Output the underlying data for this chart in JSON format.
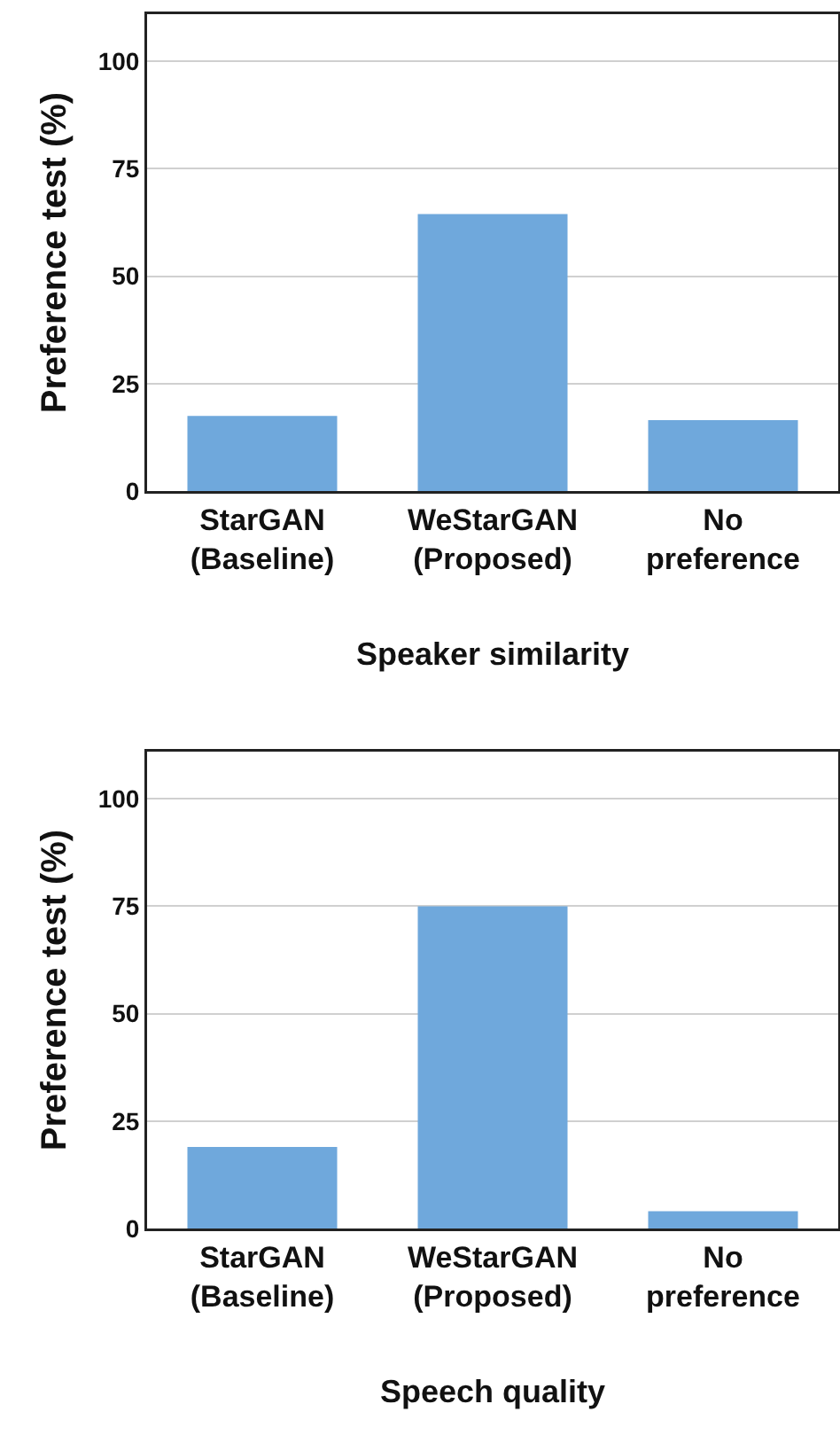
{
  "chart_data": [
    {
      "type": "bar",
      "categories": [
        "StarGAN (Baseline)",
        "WeStarGAN (Proposed)",
        "No preference"
      ],
      "values": [
        17.5,
        64.5,
        16.5
      ],
      "color": "#6fa8dc",
      "ylabel": "Preference test (%)",
      "xlabel": "Speaker similarity",
      "ylim": [
        0,
        111
      ],
      "yticks": [
        0,
        25,
        50,
        75,
        100
      ],
      "grid": "y"
    },
    {
      "type": "bar",
      "categories": [
        "StarGAN (Baseline)",
        "WeStarGAN (Proposed)",
        "No preference"
      ],
      "values": [
        19,
        75,
        4
      ],
      "color": "#6fa8dc",
      "ylabel": "Preference test (%)",
      "xlabel": "Speech quality",
      "ylim": [
        0,
        111
      ],
      "yticks": [
        0,
        25,
        50,
        75,
        100
      ],
      "grid": "y"
    }
  ]
}
